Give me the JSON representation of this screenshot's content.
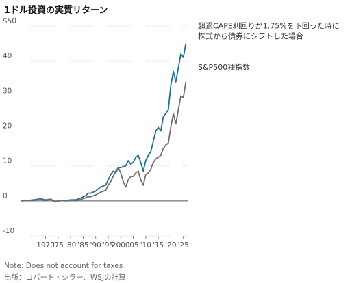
{
  "title": "1ドル投資の実質リターン",
  "notes": {
    "line1": "Note: Does not account for taxes",
    "line2": "出所：ロバート・シラー、WSJの計算"
  },
  "chart_data": {
    "type": "line",
    "title": "1ドル投資の実質リターン",
    "xlabel": "",
    "ylabel": "",
    "xlim": [
      1960,
      2027
    ],
    "ylim": [
      -10,
      50
    ],
    "y_ticks": [
      {
        "value": 50,
        "label": "$50"
      },
      {
        "value": 40,
        "label": "40"
      },
      {
        "value": 30,
        "label": "30"
      },
      {
        "value": 20,
        "label": "20"
      },
      {
        "value": 10,
        "label": "10"
      },
      {
        "value": 0,
        "label": "0"
      },
      {
        "value": -10,
        "label": "-10"
      }
    ],
    "x_ticks": [
      {
        "value": 1970,
        "label": "1970"
      },
      {
        "value": 1975,
        "label": "'75"
      },
      {
        "value": 1980,
        "label": "'80"
      },
      {
        "value": 1985,
        "label": "'85"
      },
      {
        "value": 1990,
        "label": "'90"
      },
      {
        "value": 1995,
        "label": "'95"
      },
      {
        "value": 2000,
        "label": "2000"
      },
      {
        "value": 2005,
        "label": "'05"
      },
      {
        "value": 2010,
        "label": "'10"
      },
      {
        "value": 2015,
        "label": "'15"
      },
      {
        "value": 2020,
        "label": "'20"
      },
      {
        "value": 2025,
        "label": "'25"
      }
    ],
    "grid": true,
    "zero_line": true,
    "series": [
      {
        "name": "超過CAPE利回りが1.75%を下回った時に株式から債券にシフトした場合",
        "color": "#1f6f96",
        "points": [
          [
            1960,
            0
          ],
          [
            1963,
            0.1
          ],
          [
            1966,
            0.4
          ],
          [
            1968,
            0.6
          ],
          [
            1970,
            0.3
          ],
          [
            1972,
            0.5
          ],
          [
            1974,
            -0.2
          ],
          [
            1976,
            0.2
          ],
          [
            1978,
            0.1
          ],
          [
            1980,
            0.3
          ],
          [
            1982,
            0.3
          ],
          [
            1984,
            0.8
          ],
          [
            1986,
            1.5
          ],
          [
            1987,
            2.2
          ],
          [
            1988,
            2.2
          ],
          [
            1990,
            2.8
          ],
          [
            1992,
            4.0
          ],
          [
            1994,
            4.5
          ],
          [
            1995,
            6.0
          ],
          [
            1996,
            7.5
          ],
          [
            1997,
            8.5
          ],
          [
            1998,
            8.0
          ],
          [
            1999,
            9.5
          ],
          [
            2000,
            9.5
          ],
          [
            2001,
            9.8
          ],
          [
            2002,
            10.0
          ],
          [
            2003,
            11.5
          ],
          [
            2004,
            10.5
          ],
          [
            2005,
            11.0
          ],
          [
            2006,
            12.5
          ],
          [
            2007,
            13.0
          ],
          [
            2008,
            11.0
          ],
          [
            2009,
            8.5
          ],
          [
            2010,
            11.5
          ],
          [
            2011,
            13.0
          ],
          [
            2012,
            14.0
          ],
          [
            2013,
            17.0
          ],
          [
            2014,
            20.0
          ],
          [
            2015,
            21.0
          ],
          [
            2016,
            20.0
          ],
          [
            2017,
            24.0
          ],
          [
            2018,
            25.0
          ],
          [
            2019,
            26.0
          ],
          [
            2020,
            33.0
          ],
          [
            2021,
            37.0
          ],
          [
            2022,
            34.0
          ],
          [
            2023,
            38.0
          ],
          [
            2024,
            42.0
          ],
          [
            2025,
            41.0
          ],
          [
            2026,
            45.0
          ]
        ]
      },
      {
        "name": "S&P500種指数",
        "color": "#6e6e6e",
        "points": [
          [
            1960,
            0
          ],
          [
            1963,
            0.1
          ],
          [
            1966,
            0.3
          ],
          [
            1968,
            0.4
          ],
          [
            1970,
            0.2
          ],
          [
            1972,
            0.4
          ],
          [
            1974,
            -0.3
          ],
          [
            1976,
            0.1
          ],
          [
            1978,
            0
          ],
          [
            1980,
            0.1
          ],
          [
            1982,
            0.1
          ],
          [
            1984,
            0.4
          ],
          [
            1986,
            0.9
          ],
          [
            1987,
            1.2
          ],
          [
            1988,
            1.2
          ],
          [
            1990,
            1.7
          ],
          [
            1992,
            2.5
          ],
          [
            1994,
            3.0
          ],
          [
            1995,
            4.5
          ],
          [
            1996,
            5.5
          ],
          [
            1997,
            7.0
          ],
          [
            1998,
            8.5
          ],
          [
            1999,
            9.5
          ],
          [
            2000,
            8.0
          ],
          [
            2001,
            5.5
          ],
          [
            2002,
            4.0
          ],
          [
            2003,
            6.0
          ],
          [
            2004,
            7.0
          ],
          [
            2005,
            7.0
          ],
          [
            2006,
            8.0
          ],
          [
            2007,
            8.5
          ],
          [
            2008,
            6.0
          ],
          [
            2009,
            4.5
          ],
          [
            2010,
            7.5
          ],
          [
            2011,
            8.0
          ],
          [
            2012,
            9.0
          ],
          [
            2013,
            11.0
          ],
          [
            2014,
            12.0
          ],
          [
            2015,
            12.5
          ],
          [
            2016,
            13.0
          ],
          [
            2017,
            15.0
          ],
          [
            2018,
            16.0
          ],
          [
            2019,
            16.5
          ],
          [
            2020,
            21.0
          ],
          [
            2021,
            25.0
          ],
          [
            2022,
            22.0
          ],
          [
            2023,
            26.0
          ],
          [
            2024,
            30.0
          ],
          [
            2025,
            29.5
          ],
          [
            2026,
            34.0
          ]
        ]
      }
    ],
    "annotations": [
      {
        "series": 0,
        "lines": [
          "超過CAPE利回りが1.75%を下回った時に",
          "株式から債券にシフトした場合"
        ]
      },
      {
        "series": 1,
        "lines": [
          "S&P500種指数"
        ]
      }
    ]
  }
}
